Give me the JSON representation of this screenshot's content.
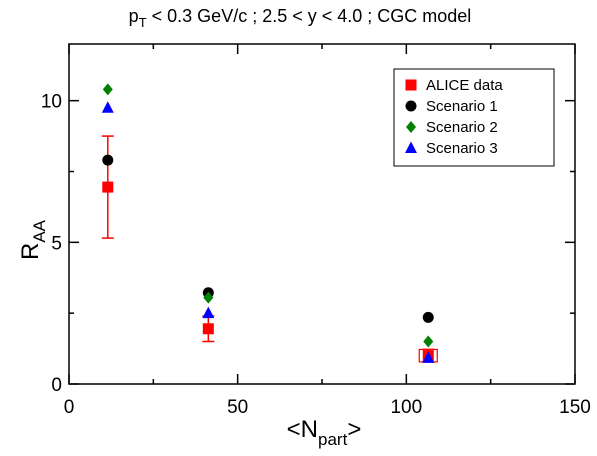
{
  "chart_data": {
    "type": "scatter",
    "title": "p_T < 0.3 GeV/c ;  2.5 < y < 4.0 ; CGC model",
    "title_parts": {
      "p": "p",
      "sub": "T",
      "rest": " < 0.3 GeV/c ;  2.5 < y < 4.0 ; CGC model"
    },
    "xlabel": "<N_part>",
    "xlabel_parts": {
      "pre": "<N",
      "sub": "part",
      "post": ">"
    },
    "ylabel": "R_AA",
    "ylabel_parts": {
      "main": "R",
      "sub": "AA"
    },
    "xlim": [
      0,
      150
    ],
    "ylim": [
      0,
      12
    ],
    "xticks": [
      0,
      50,
      100,
      150
    ],
    "yticks": [
      0,
      5,
      10
    ],
    "grid": false,
    "legend_position": "top-right",
    "series": [
      {
        "name": "ALICE data",
        "marker": "square",
        "color": "#ff0000",
        "x": [
          11.5,
          41.3,
          106.5
        ],
        "y": [
          6.95,
          1.95,
          1.0
        ],
        "yerr": [
          1.8,
          0.45,
          0.22
        ],
        "syst_box": [
          false,
          false,
          true
        ]
      },
      {
        "name": "Scenario 1",
        "marker": "circle",
        "color": "#000000",
        "x": [
          11.5,
          41.3,
          106.5
        ],
        "y": [
          7.9,
          3.22,
          2.35
        ]
      },
      {
        "name": "Scenario 2",
        "marker": "diamond",
        "color": "#008000",
        "x": [
          11.5,
          41.3,
          106.5
        ],
        "y": [
          10.4,
          3.05,
          1.5
        ]
      },
      {
        "name": "Scenario 3",
        "marker": "triangle",
        "color": "#0000ff",
        "x": [
          11.5,
          41.3,
          106.5
        ],
        "y": [
          9.75,
          2.5,
          0.92
        ]
      }
    ]
  }
}
